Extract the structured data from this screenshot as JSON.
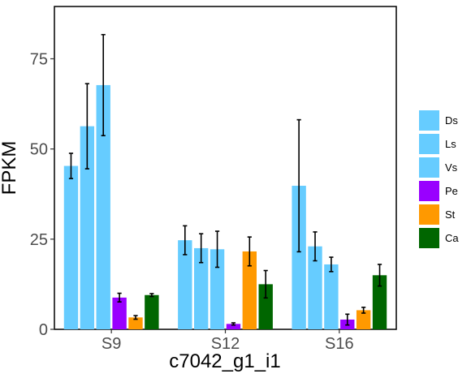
{
  "chart_data": {
    "type": "bar",
    "title": "",
    "xlabel": "c7042_g1_i1",
    "ylabel": "FPKM",
    "categories": [
      "S9",
      "S12",
      "S16"
    ],
    "yticks": [
      0,
      25,
      50,
      75
    ],
    "ylim": [
      0,
      89.5
    ],
    "grid": false,
    "legend_position": "right",
    "series": [
      {
        "name": "Ds",
        "color": "#66CCFF",
        "values": [
          45.3,
          24.7,
          39.8
        ],
        "errors": [
          3.5,
          4.0,
          18.3
        ]
      },
      {
        "name": "Ls",
        "color": "#66CCFF",
        "values": [
          56.3,
          22.5,
          23.0
        ],
        "errors": [
          11.8,
          4.0,
          4.0
        ]
      },
      {
        "name": "Vs",
        "color": "#66CCFF",
        "values": [
          67.7,
          22.2,
          18.0
        ],
        "errors": [
          14.0,
          5.0,
          2.0
        ]
      },
      {
        "name": "Pe",
        "color": "#9900FF",
        "values": [
          8.8,
          1.5,
          2.7
        ],
        "errors": [
          1.2,
          0.3,
          1.5
        ]
      },
      {
        "name": "St",
        "color": "#FF9900",
        "values": [
          3.3,
          21.6,
          5.3
        ],
        "errors": [
          0.5,
          4.0,
          0.8
        ]
      },
      {
        "name": "Ca",
        "color": "#006600",
        "values": [
          9.5,
          12.5,
          15.0
        ],
        "errors": [
          0.4,
          3.8,
          3.0
        ]
      }
    ]
  }
}
